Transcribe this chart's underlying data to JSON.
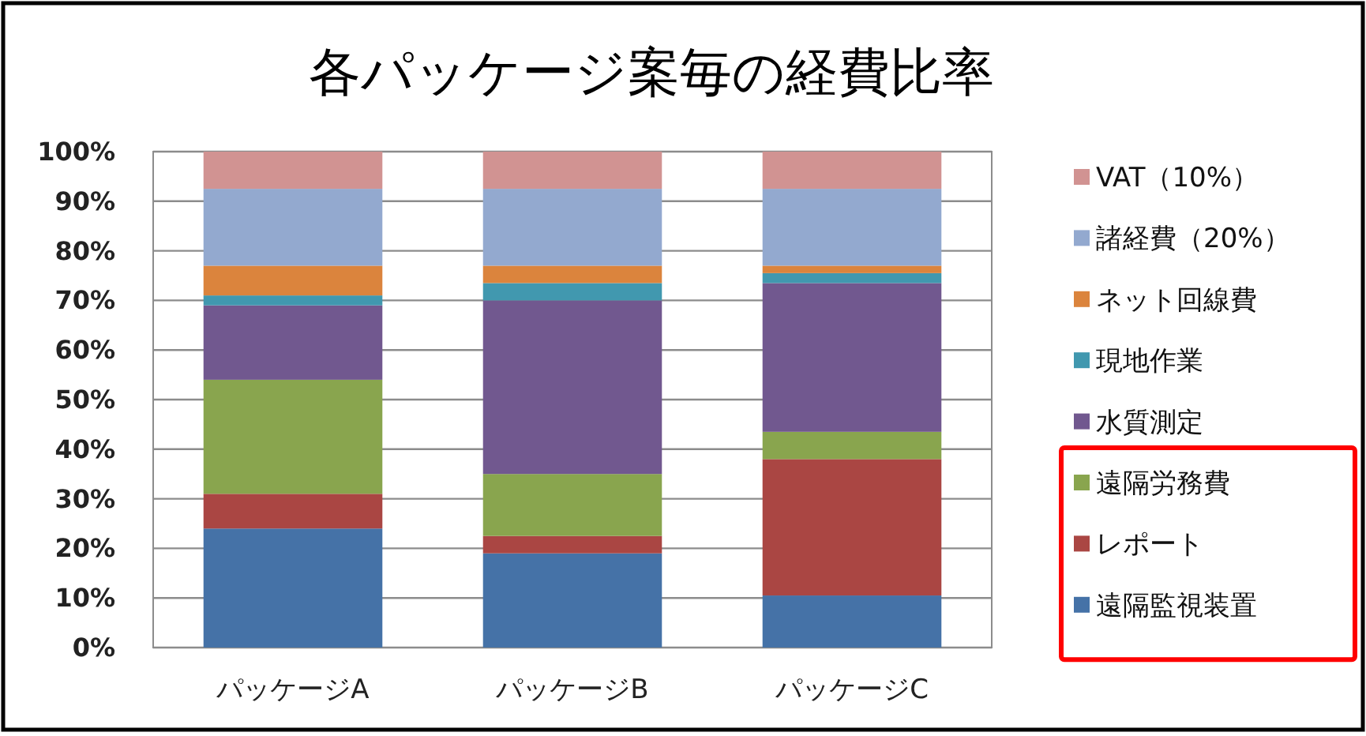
{
  "chart_data": {
    "type": "bar",
    "title": "各パッケージ案毎の経費比率",
    "stacked": true,
    "categories": [
      "パッケージA",
      "パッケージB",
      "パッケージC"
    ],
    "series": [
      {
        "name": "遠隔監視装置",
        "color": "#4572a7",
        "values": [
          24,
          19,
          10.5
        ]
      },
      {
        "name": "レポート",
        "color": "#aa4643",
        "values": [
          7,
          3.5,
          27.5
        ]
      },
      {
        "name": "遠隔労務費",
        "color": "#89a54e",
        "values": [
          23,
          12.5,
          5.5
        ]
      },
      {
        "name": "水質測定",
        "color": "#71588f",
        "values": [
          15,
          35,
          30
        ]
      },
      {
        "name": "現地作業",
        "color": "#4198af",
        "values": [
          2,
          3.5,
          2
        ]
      },
      {
        "name": "ネット回線費",
        "color": "#db843d",
        "values": [
          6,
          3.5,
          1.5
        ]
      },
      {
        "name": "諸経費（20%）",
        "color": "#93a9cf",
        "values": [
          15.5,
          15.5,
          15.5
        ]
      },
      {
        "name": "VAT（10%）",
        "color": "#d19392",
        "values": [
          7.5,
          7.5,
          7.5
        ]
      }
    ],
    "ylim": [
      0,
      100
    ],
    "yticks": [
      {
        "value": 0,
        "label": "0%"
      },
      {
        "value": 10,
        "label": "10%"
      },
      {
        "value": 20,
        "label": "20%"
      },
      {
        "value": 30,
        "label": "30%"
      },
      {
        "value": 40,
        "label": "40%"
      },
      {
        "value": 50,
        "label": "50%"
      },
      {
        "value": 60,
        "label": "60%"
      },
      {
        "value": 70,
        "label": "70%"
      },
      {
        "value": 80,
        "label": "80%"
      },
      {
        "value": 90,
        "label": "90%"
      },
      {
        "value": 100,
        "label": "100%"
      }
    ],
    "grid": "y",
    "legend": "right"
  }
}
